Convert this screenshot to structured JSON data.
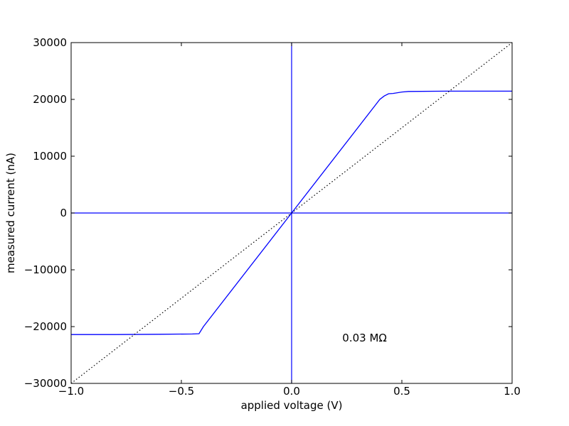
{
  "chart_data": {
    "type": "line",
    "xlabel": "applied voltage (V)",
    "ylabel": "measured current (nA)",
    "xlim": [
      -1,
      1
    ],
    "ylim": [
      -30000,
      30000
    ],
    "xticks": [
      {
        "value": -1,
        "label": "−1.0"
      },
      {
        "value": -0.5,
        "label": "−0.5"
      },
      {
        "value": 0,
        "label": "0.0"
      },
      {
        "value": 0.5,
        "label": "0.5"
      },
      {
        "value": 1,
        "label": "1.0"
      }
    ],
    "yticks": [
      {
        "value": -30000,
        "label": "−30000"
      },
      {
        "value": -20000,
        "label": "−20000"
      },
      {
        "value": -10000,
        "label": "−10000"
      },
      0,
      10000,
      20000,
      30000
    ],
    "grid": false,
    "zero_lines": true,
    "zero_line_color": "#0000ff",
    "series": [
      {
        "color": "#0000ff",
        "style": "solid",
        "x": [
          -1,
          -0.8,
          -0.6,
          -0.45,
          -0.42,
          -0.4,
          0,
          0.38,
          0.4,
          0.42,
          0.44,
          0.46,
          0.5,
          0.53,
          0.7,
          1
        ],
        "values": [
          -21400,
          -21400,
          -21350,
          -21300,
          -21250,
          -20000,
          0,
          19000,
          20000,
          20600,
          21000,
          21050,
          21300,
          21400,
          21450,
          21450
        ]
      },
      {
        "color": "#000000",
        "style": "dotted",
        "x": [
          -1,
          1
        ],
        "values": [
          -30000,
          30000
        ]
      }
    ],
    "annotation": {
      "text": "0.03 MΩ",
      "x": 0.23,
      "y": -22000
    }
  }
}
